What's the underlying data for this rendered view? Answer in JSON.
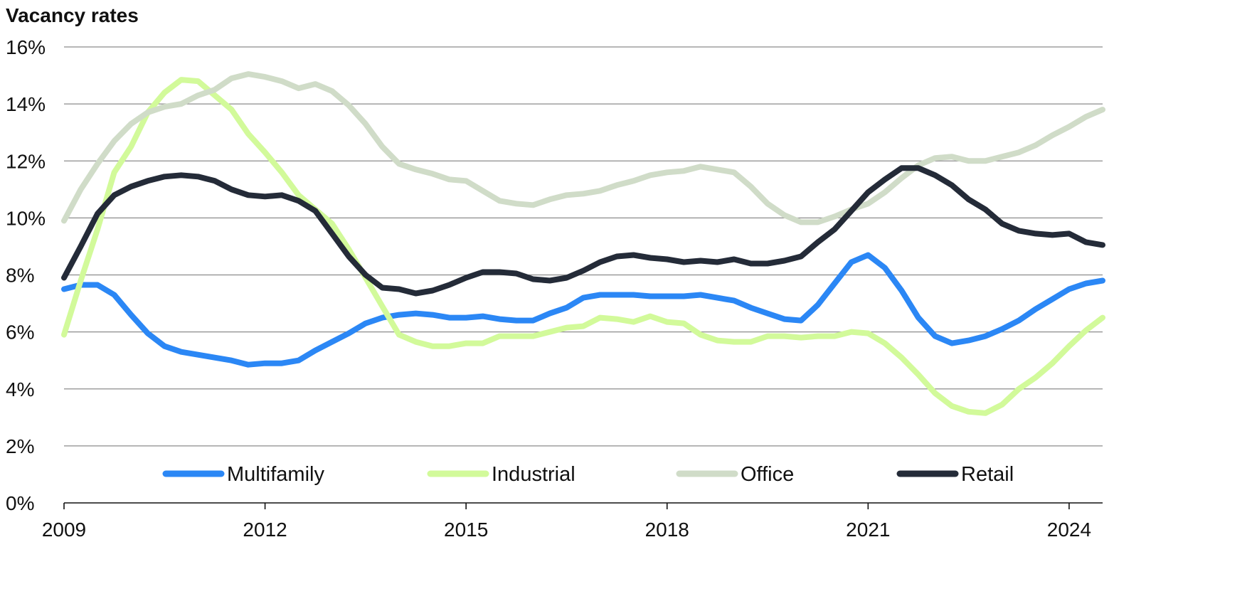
{
  "chart_data": {
    "type": "line",
    "title": "Vacancy rates",
    "xlabel": "",
    "ylabel": "",
    "xlim": [
      2009.0,
      2024.5
    ],
    "ylim": [
      0,
      16
    ],
    "y_tick_values": [
      0,
      2,
      4,
      6,
      8,
      10,
      12,
      14,
      16
    ],
    "y_tick_labels": [
      "0%",
      "2%",
      "4%",
      "6%",
      "8%",
      "10%",
      "12%",
      "14%",
      "16%"
    ],
    "x_tick_values": [
      2009,
      2012,
      2015,
      2018,
      2021,
      2024
    ],
    "x_tick_labels": [
      "2009",
      "2012",
      "2015",
      "2018",
      "2021",
      "2024"
    ],
    "grid": "horizontal",
    "legend_position": "bottom-center",
    "x": [
      2009.0,
      2009.25,
      2009.5,
      2009.75,
      2010.0,
      2010.25,
      2010.5,
      2010.75,
      2011.0,
      2011.25,
      2011.5,
      2011.75,
      2012.0,
      2012.25,
      2012.5,
      2012.75,
      2013.0,
      2013.25,
      2013.5,
      2013.75,
      2014.0,
      2014.25,
      2014.5,
      2014.75,
      2015.0,
      2015.25,
      2015.5,
      2015.75,
      2016.0,
      2016.25,
      2016.5,
      2016.75,
      2017.0,
      2017.25,
      2017.5,
      2017.75,
      2018.0,
      2018.25,
      2018.5,
      2018.75,
      2019.0,
      2019.25,
      2019.5,
      2019.75,
      2020.0,
      2020.25,
      2020.5,
      2020.75,
      2021.0,
      2021.25,
      2021.5,
      2021.75,
      2022.0,
      2022.25,
      2022.5,
      2022.75,
      2023.0,
      2023.25,
      2023.5,
      2023.75,
      2024.0,
      2024.25,
      2024.5
    ],
    "series": [
      {
        "name": "Multifamily",
        "color": "#2b87f5",
        "values": [
          7.5,
          7.65,
          7.65,
          7.3,
          6.6,
          5.95,
          5.5,
          5.3,
          5.2,
          5.1,
          5.0,
          4.85,
          4.9,
          4.9,
          5.0,
          5.35,
          5.65,
          5.95,
          6.3,
          6.5,
          6.6,
          6.65,
          6.6,
          6.5,
          6.5,
          6.55,
          6.45,
          6.4,
          6.4,
          6.65,
          6.85,
          7.2,
          7.3,
          7.3,
          7.3,
          7.25,
          7.25,
          7.25,
          7.3,
          7.2,
          7.1,
          6.85,
          6.65,
          6.45,
          6.4,
          6.95,
          7.7,
          8.45,
          8.7,
          8.25,
          7.45,
          6.5,
          5.85,
          5.6,
          5.7,
          5.85,
          6.1,
          6.4,
          6.8,
          7.15,
          7.5,
          7.7,
          7.8
        ]
      },
      {
        "name": "Industrial",
        "color": "#d2fa9a",
        "values": [
          5.9,
          7.8,
          9.6,
          11.6,
          12.5,
          13.7,
          14.4,
          14.85,
          14.8,
          14.3,
          13.8,
          12.95,
          12.3,
          11.6,
          10.8,
          10.3,
          9.8,
          8.9,
          7.9,
          6.9,
          5.9,
          5.65,
          5.5,
          5.5,
          5.6,
          5.6,
          5.85,
          5.85,
          5.85,
          6.0,
          6.15,
          6.2,
          6.5,
          6.45,
          6.35,
          6.55,
          6.35,
          6.3,
          5.9,
          5.7,
          5.65,
          5.65,
          5.85,
          5.85,
          5.8,
          5.85,
          5.85,
          6.0,
          5.95,
          5.6,
          5.1,
          4.5,
          3.85,
          3.4,
          3.2,
          3.15,
          3.45,
          4.0,
          4.4,
          4.9,
          5.5,
          6.05,
          6.5
        ]
      },
      {
        "name": "Office",
        "color": "#d0dcc8",
        "values": [
          9.9,
          11.0,
          11.9,
          12.7,
          13.3,
          13.7,
          13.9,
          14.0,
          14.3,
          14.5,
          14.9,
          15.05,
          14.95,
          14.8,
          14.55,
          14.7,
          14.45,
          13.95,
          13.3,
          12.5,
          11.9,
          11.7,
          11.55,
          11.35,
          11.3,
          10.95,
          10.6,
          10.5,
          10.45,
          10.65,
          10.8,
          10.85,
          10.95,
          11.15,
          11.3,
          11.5,
          11.6,
          11.65,
          11.8,
          11.7,
          11.6,
          11.1,
          10.5,
          10.1,
          9.85,
          9.85,
          10.05,
          10.3,
          10.5,
          10.9,
          11.4,
          11.85,
          12.1,
          12.15,
          12.0,
          12.0,
          12.15,
          12.3,
          12.55,
          12.9,
          13.2,
          13.55,
          13.8
        ]
      },
      {
        "name": "Retail",
        "color": "#242b38",
        "values": [
          7.9,
          9.0,
          10.15,
          10.8,
          11.1,
          11.3,
          11.45,
          11.5,
          11.45,
          11.3,
          11.0,
          10.8,
          10.75,
          10.8,
          10.6,
          10.25,
          9.45,
          8.65,
          8.0,
          7.55,
          7.5,
          7.35,
          7.45,
          7.65,
          7.9,
          8.1,
          8.1,
          8.05,
          7.85,
          7.8,
          7.9,
          8.15,
          8.45,
          8.65,
          8.7,
          8.6,
          8.55,
          8.45,
          8.5,
          8.45,
          8.55,
          8.4,
          8.4,
          8.5,
          8.65,
          9.15,
          9.6,
          10.25,
          10.9,
          11.35,
          11.75,
          11.75,
          11.5,
          11.15,
          10.65,
          10.3,
          9.8,
          9.55,
          9.45,
          9.4,
          9.45,
          9.15,
          9.05
        ]
      }
    ]
  }
}
